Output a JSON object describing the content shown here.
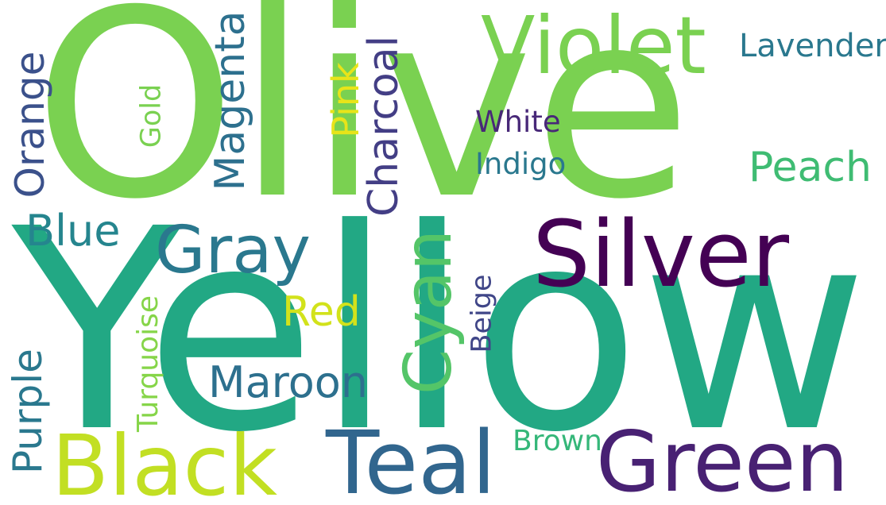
{
  "words": {
    "olive": {
      "text": "Olive",
      "color": "#7ad151"
    },
    "yellow": {
      "text": "Yellow",
      "color": "#22a884"
    },
    "violet": {
      "text": "Violet",
      "color": "#7ad151"
    },
    "silver": {
      "text": "Silver",
      "color": "#440154"
    },
    "green": {
      "text": "Green",
      "color": "#482173"
    },
    "black": {
      "text": "Black",
      "color": "#c2df23"
    },
    "teal": {
      "text": "Teal",
      "color": "#31668e"
    },
    "gray": {
      "text": "Gray",
      "color": "#2a788e"
    },
    "cyan": {
      "text": "Cyan",
      "color": "#54c568"
    },
    "charcoal": {
      "text": "Charcoal",
      "color": "#433e85"
    },
    "magenta": {
      "text": "Magenta",
      "color": "#2d708e"
    },
    "orange": {
      "text": "Orange",
      "color": "#3b518b"
    },
    "purple": {
      "text": "Purple",
      "color": "#2a788e"
    },
    "maroon": {
      "text": "Maroon",
      "color": "#2d708e"
    },
    "blue": {
      "text": "Blue",
      "color": "#25858e"
    },
    "peach": {
      "text": "Peach",
      "color": "#3fbc73"
    },
    "lavender": {
      "text": "Lavender",
      "color": "#2a788e"
    },
    "pink": {
      "text": "Pink",
      "color": "#e8e419"
    },
    "red": {
      "text": "Red",
      "color": "#d2e21b"
    },
    "white": {
      "text": "White",
      "color": "#482878"
    },
    "indigo": {
      "text": "Indigo",
      "color": "#2a788e"
    },
    "gold": {
      "text": "Gold",
      "color": "#7ad151"
    },
    "turquoise": {
      "text": "Turquoise",
      "color": "#86d549"
    },
    "beige": {
      "text": "Beige",
      "color": "#404688"
    },
    "brown": {
      "text": "Brown",
      "color": "#35b779"
    }
  }
}
